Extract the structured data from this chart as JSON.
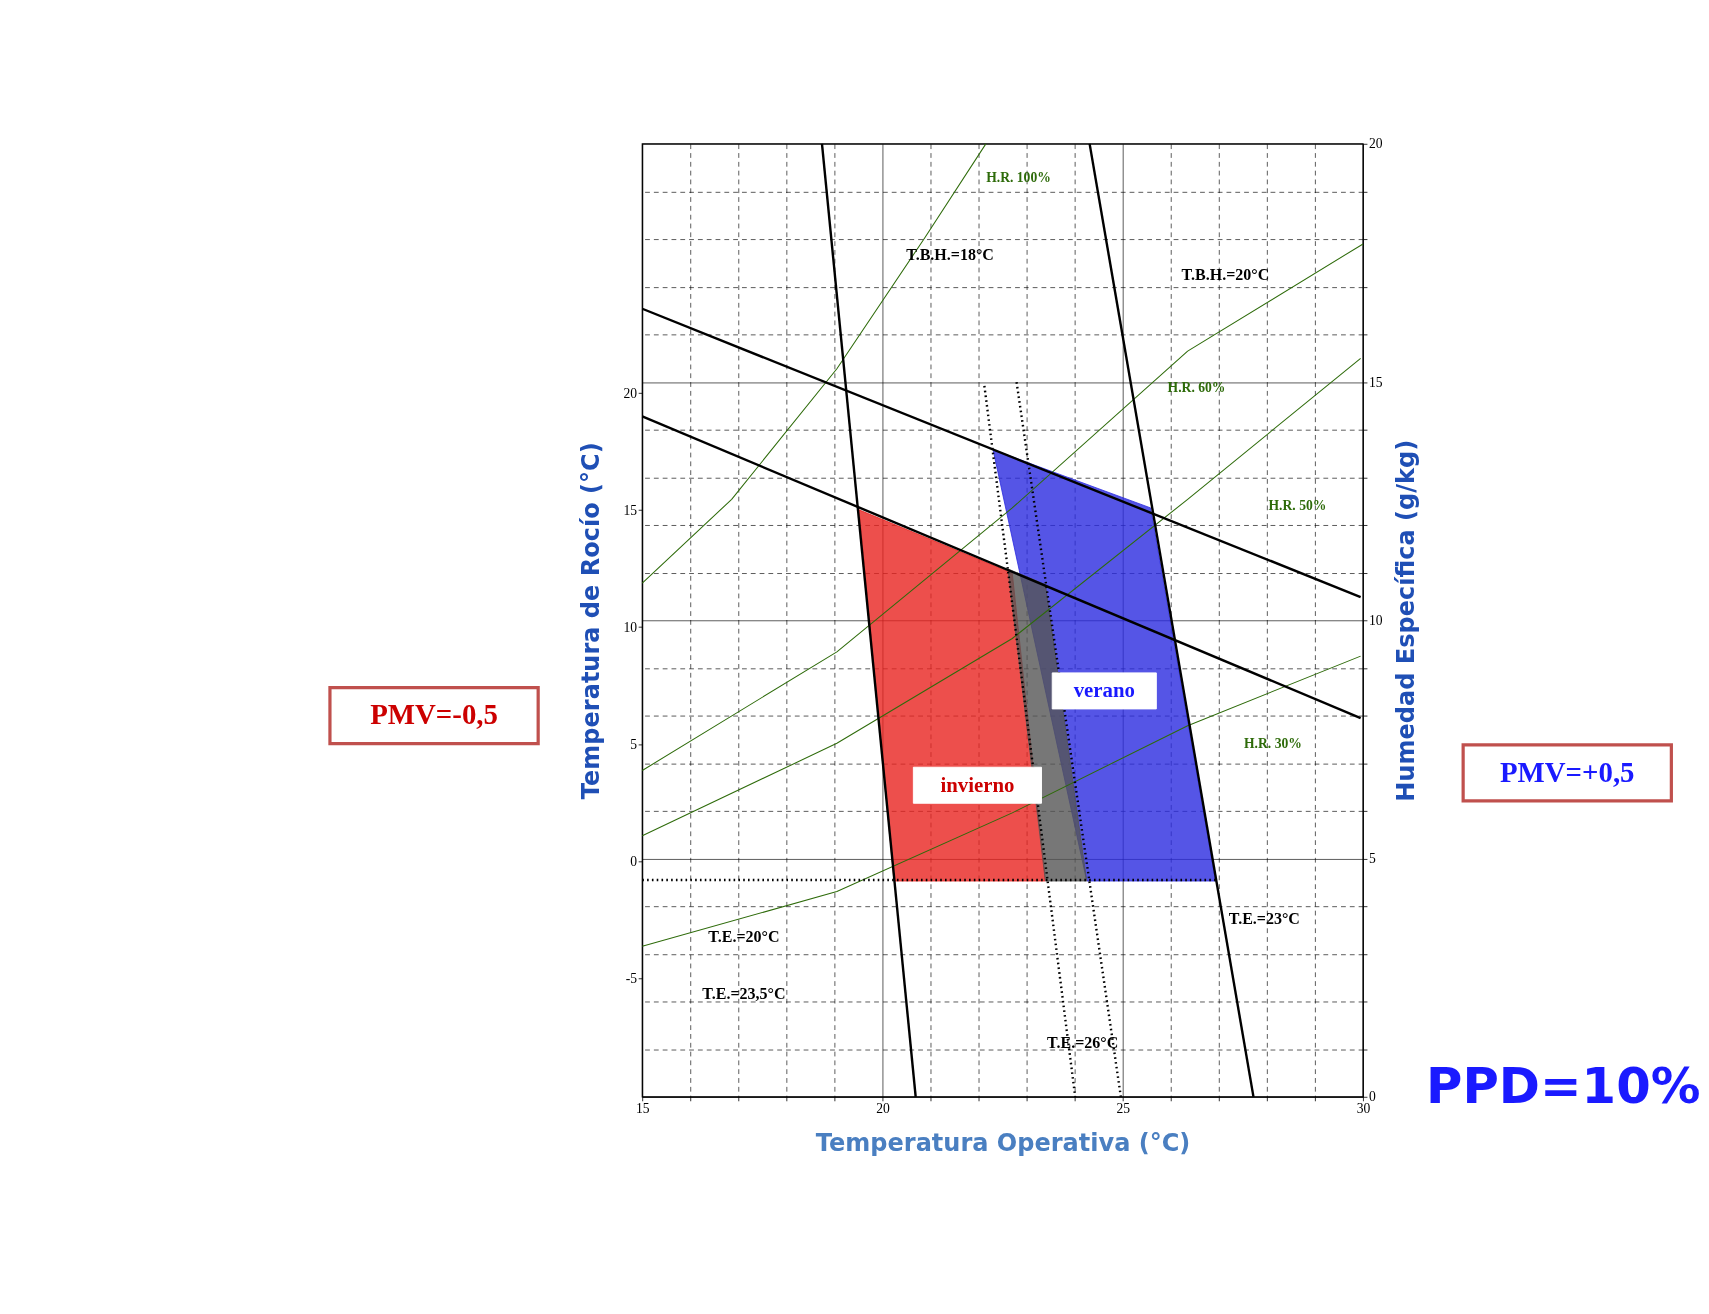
{
  "chart_data": {
    "type": "line",
    "xlabel": "Temperatura Operativa (°C)",
    "ylabel": "Humedad Específica (g/kg)",
    "y2label": "Temperatura de Rocío (°C)",
    "xlim": [
      15,
      30
    ],
    "xticks": [
      15,
      {
        "value": 16,
        "label": null
      },
      {
        "value": 17,
        "label": null
      },
      {
        "value": 18,
        "label": null
      },
      {
        "value": 19,
        "label": null
      },
      20,
      {
        "value": 21,
        "label": null
      },
      {
        "value": 22,
        "label": null
      },
      {
        "value": 23,
        "label": null
      },
      {
        "value": 24,
        "label": null
      },
      25,
      {
        "value": 26,
        "label": null
      },
      {
        "value": 27,
        "label": null
      },
      {
        "value": 28,
        "label": null
      },
      {
        "value": 29,
        "label": null
      },
      30
    ],
    "ylim": [
      0,
      20
    ],
    "yticks": [
      0,
      {
        "value": 1,
        "label": null
      },
      {
        "value": 2,
        "label": null
      },
      {
        "value": 3,
        "label": null
      },
      {
        "value": 4,
        "label": null
      },
      5,
      {
        "value": 6,
        "label": null
      },
      {
        "value": 7,
        "label": null
      },
      {
        "value": 8,
        "label": null
      },
      {
        "value": 9,
        "label": null
      },
      10,
      {
        "value": 11,
        "label": null
      },
      {
        "value": 12,
        "label": null
      },
      {
        "value": 13,
        "label": null
      },
      {
        "value": 14,
        "label": null
      },
      15,
      {
        "value": 16,
        "label": null
      },
      {
        "value": 17,
        "label": null
      },
      {
        "value": 18,
        "label": null
      },
      {
        "value": 19,
        "label": null
      },
      20
    ],
    "y2lim": [
      -10.07,
      30.65
    ],
    "y2ticks": [
      -5,
      0,
      5,
      10,
      15,
      20
    ],
    "grid": true,
    "series": [
      {
        "type": "area",
        "color": "#e8231f",
        "x": [
          19.51,
          22.7,
          23.39,
          20.24
        ],
        "values": [
          12.32,
          10.99,
          4.53,
          4.53
        ]
      },
      {
        "type": "area",
        "color": "#2a2ae0",
        "x": [
          22.3,
          25.58,
          26.93,
          24.25
        ],
        "values": [
          13.58,
          12.36,
          4.53,
          4.53
        ]
      },
      {
        "type": "area",
        "color": "#555555",
        "x": [
          22.61,
          23.39,
          24.25,
          23.39
        ],
        "values": [
          11.08,
          10.75,
          4.53,
          4.53
        ]
      },
      {
        "color": "#2e6b0a",
        "x": [
          15.0,
          16.86,
          19.05,
          20.88,
          22.15
        ],
        "values": [
          10.78,
          12.54,
          15.28,
          18.03,
          20.0
        ]
      },
      {
        "color": "#2e6b0a",
        "x": [
          15.0,
          19.05,
          22.7,
          26.35,
          30.0
        ],
        "values": [
          6.85,
          9.34,
          12.36,
          15.65,
          17.9
        ]
      },
      {
        "color": "#2e6b0a",
        "x": [
          15.0,
          19.05,
          22.7,
          26.35,
          29.95
        ],
        "values": [
          5.48,
          7.42,
          9.62,
          12.54,
          15.5
        ]
      },
      {
        "color": "#2e6b0a",
        "x": [
          15.0,
          19.05,
          22.7,
          26.35,
          29.95
        ],
        "values": [
          3.16,
          4.31,
          5.96,
          7.79,
          9.25
        ]
      },
      {
        "color": "#000000",
        "x": [
          15.0,
          29.95
        ],
        "values": [
          14.28,
          7.95
        ]
      },
      {
        "color": "#000000",
        "x": [
          15.0,
          29.95
        ],
        "values": [
          16.54,
          10.49
        ]
      },
      {
        "color": "#000000",
        "x": [
          18.74,
          20.69
        ],
        "values": [
          20.0,
          0.0
        ]
      },
      {
        "color": "#000000",
        "x": [
          24.31,
          27.72
        ],
        "values": [
          20.0,
          0.0
        ]
      },
      {
        "color": "#000000",
        "line_style": "dotted",
        "x": [
          22.12,
          24.01
        ],
        "values": [
          14.92,
          0.0
        ]
      },
      {
        "color": "#000000",
        "line_style": "dotted",
        "x": [
          22.79,
          24.96
        ],
        "values": [
          15.0,
          0.0
        ]
      },
      {
        "color": "#000000",
        "line_style": "dotted",
        "x": [
          15.0,
          27.0
        ],
        "values": [
          4.55,
          4.55
        ]
      }
    ],
    "annotations": [
      "T.B.H.=18°C",
      "T.B.H.=20°C",
      "H.R. 100%",
      "H.R. 60%",
      "H.R. 50%",
      "H.R. 30%",
      "T.E.=20°C",
      "T.E.=23,5°C",
      "T.E.=23°C",
      "T.E.=26°C",
      "verano",
      "invierno",
      "PMV=-0,5",
      "PMV=+0,5",
      "PPD=10%"
    ]
  }
}
